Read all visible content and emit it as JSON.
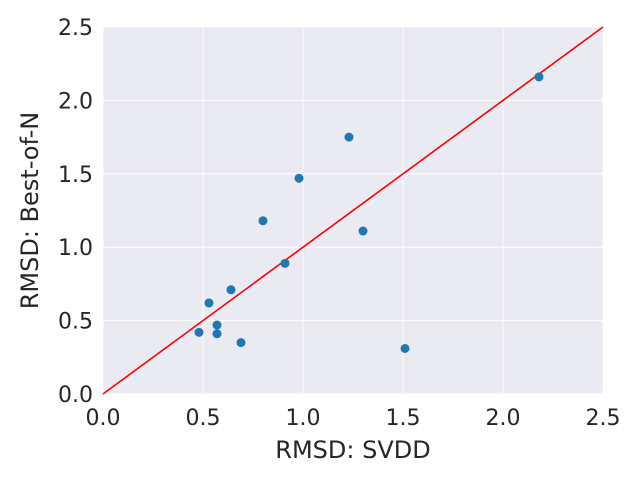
{
  "chart_data": {
    "type": "scatter",
    "title": "",
    "xlabel": "RMSD: SVDD",
    "ylabel": "RMSD: Best-of-N",
    "xlim": [
      0.0,
      2.5
    ],
    "ylim": [
      0.0,
      2.5
    ],
    "x_ticks": [
      "0.0",
      "0.5",
      "1.0",
      "1.5",
      "2.0",
      "2.5"
    ],
    "y_ticks": [
      "0.0",
      "0.5",
      "1.0",
      "1.5",
      "2.0",
      "2.5"
    ],
    "grid": true,
    "background_color": "#eaeaf2",
    "grid_color": "#ffffff",
    "series": [
      {
        "color": "#1f77b4",
        "points": [
          {
            "x": 0.48,
            "y": 0.42
          },
          {
            "x": 0.53,
            "y": 0.62
          },
          {
            "x": 0.57,
            "y": 0.47
          },
          {
            "x": 0.57,
            "y": 0.41
          },
          {
            "x": 0.64,
            "y": 0.71
          },
          {
            "x": 0.69,
            "y": 0.35
          },
          {
            "x": 0.8,
            "y": 1.18
          },
          {
            "x": 0.91,
            "y": 0.89
          },
          {
            "x": 0.98,
            "y": 1.47
          },
          {
            "x": 1.23,
            "y": 1.75
          },
          {
            "x": 1.3,
            "y": 1.11
          },
          {
            "x": 1.51,
            "y": 0.31
          },
          {
            "x": 2.18,
            "y": 2.16
          }
        ]
      }
    ],
    "reference_line": {
      "x": [
        0.0,
        2.5
      ],
      "y": [
        0.0,
        2.5
      ],
      "color": "#ff0000"
    }
  }
}
